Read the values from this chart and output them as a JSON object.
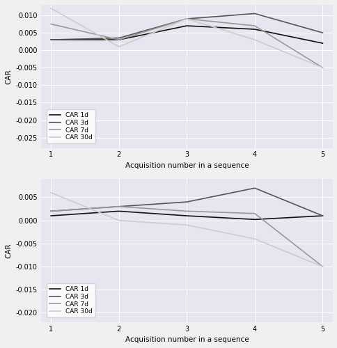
{
  "x": [
    1,
    2,
    3,
    4,
    5
  ],
  "subplot_A": {
    "CAR_1d": [
      0.003,
      0.003,
      0.007,
      0.006,
      0.002
    ],
    "CAR_3d": [
      0.003,
      0.0035,
      0.009,
      0.0105,
      0.005
    ],
    "CAR_7d": [
      0.0075,
      0.003,
      0.009,
      0.007,
      -0.005
    ],
    "CAR_30d": [
      0.012,
      0.001,
      0.009,
      0.003,
      -0.005
    ]
  },
  "subplot_B": {
    "CAR_1d": [
      0.001,
      0.002,
      0.001,
      0.0002,
      0.001
    ],
    "CAR_3d": [
      0.002,
      0.003,
      0.004,
      0.007,
      0.001
    ],
    "CAR_7d": [
      0.002,
      0.003,
      0.002,
      0.0015,
      -0.01
    ],
    "CAR_30d": [
      0.006,
      0.0,
      -0.001,
      -0.004,
      -0.01
    ]
  },
  "colors": {
    "CAR_1d": "#111111",
    "CAR_3d": "#555555",
    "CAR_7d": "#999999",
    "CAR_30d": "#cccccc"
  },
  "legend_labels": [
    "CAR 1d",
    "CAR 3d",
    "CAR 7d",
    "CAR 30d"
  ],
  "xlabel": "Acquisition number in a sequence",
  "ylabel": "CAR",
  "subplot_A_ylim": [
    -0.028,
    0.013
  ],
  "subplot_A_yticks": [
    0.01,
    0.005,
    0.0,
    -0.005,
    -0.01,
    -0.015,
    -0.02,
    -0.025
  ],
  "subplot_B_ylim": [
    -0.022,
    0.009
  ],
  "subplot_B_yticks": [
    0.005,
    0.0,
    -0.005,
    -0.01,
    -0.015,
    -0.02
  ],
  "background_color": "#e6e6f0",
  "fig_facecolor": "#f0f0f0",
  "line_width": 1.2,
  "tick_fontsize": 7,
  "label_fontsize": 7.5,
  "legend_fontsize": 6.5
}
